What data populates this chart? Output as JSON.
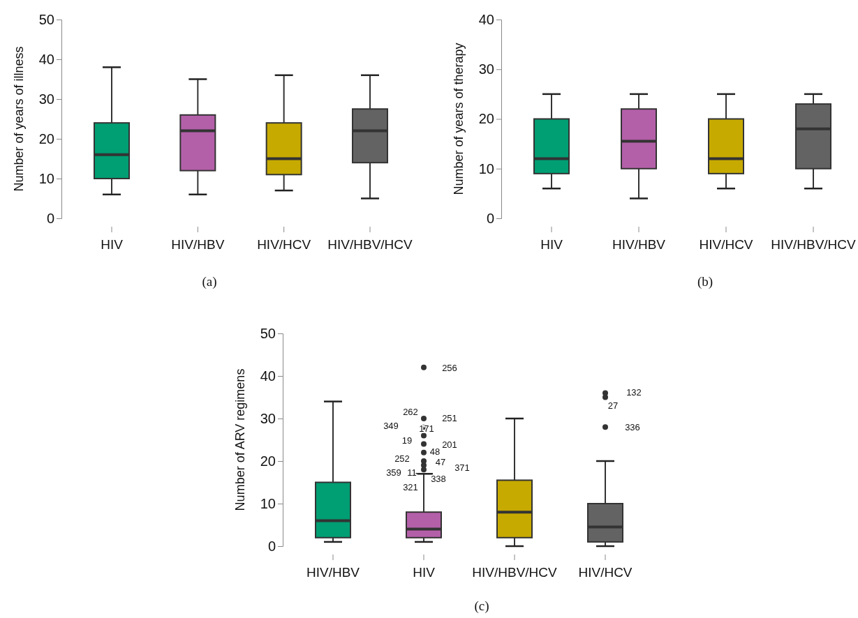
{
  "chart_data": [
    {
      "type": "box",
      "ylabel": "Number of years of illness",
      "categories": [
        "HIV",
        "HIV/HBV",
        "HIV/HCV",
        "HIV/HBV/HCV"
      ],
      "colors": [
        "#009e73",
        "#b460a9",
        "#c7aa00",
        "#636363"
      ],
      "ylim": [
        0,
        50
      ],
      "yticks": [
        0,
        10,
        20,
        30,
        40,
        50
      ],
      "boxes": [
        {
          "low": 6,
          "q1": 10,
          "median": 16,
          "q3": 24,
          "high": 38
        },
        {
          "low": 6,
          "q1": 12,
          "median": 22,
          "q3": 26,
          "high": 35
        },
        {
          "low": 7,
          "q1": 11,
          "median": 15,
          "q3": 24,
          "high": 36
        },
        {
          "low": 5,
          "q1": 14,
          "median": 22,
          "q3": 27.5,
          "high": 36
        }
      ],
      "annotations": [
        "(a)"
      ]
    },
    {
      "type": "box",
      "ylabel": "Number of years of therapy",
      "categories": [
        "HIV",
        "HIV/HBV",
        "HIV/HCV",
        "HIV/HBV/HCV"
      ],
      "colors": [
        "#009e73",
        "#b460a9",
        "#c7aa00",
        "#636363"
      ],
      "ylim": [
        0,
        40
      ],
      "yticks": [
        0,
        10,
        20,
        30,
        40
      ],
      "boxes": [
        {
          "low": 6,
          "q1": 9,
          "median": 12,
          "q3": 20,
          "high": 25
        },
        {
          "low": 4,
          "q1": 10,
          "median": 15.5,
          "q3": 22,
          "high": 25
        },
        {
          "low": 6,
          "q1": 9,
          "median": 12,
          "q3": 20,
          "high": 25
        },
        {
          "low": 6,
          "q1": 10,
          "median": 18,
          "q3": 23,
          "high": 25
        }
      ],
      "annotations": [
        "(b)"
      ]
    },
    {
      "type": "box",
      "ylabel": "Number of ARV regimens",
      "categories": [
        "HIV/HBV",
        "HIV",
        "HIV/HBV/HCV",
        "HIV/HCV"
      ],
      "colors": [
        "#009e73",
        "#b460a9",
        "#c7aa00",
        "#636363"
      ],
      "ylim": [
        0,
        50
      ],
      "yticks": [
        0,
        10,
        20,
        30,
        40,
        50
      ],
      "boxes": [
        {
          "low": 1,
          "q1": 2,
          "median": 6,
          "q3": 15,
          "high": 34
        },
        {
          "low": 1,
          "q1": 2,
          "median": 4,
          "q3": 8,
          "high": 17,
          "outliers": [
            42,
            30,
            28,
            26,
            24,
            22,
            20,
            19,
            18
          ]
        },
        {
          "low": 0,
          "q1": 2,
          "median": 8,
          "q3": 15.5,
          "high": 30
        },
        {
          "low": 0,
          "q1": 1,
          "median": 4.5,
          "q3": 10,
          "high": 20,
          "outliers": [
            36,
            35,
            28
          ]
        }
      ],
      "annotations": [
        "(c)",
        "256",
        "262",
        "251",
        "349",
        "171",
        "19",
        "201",
        "48",
        "252",
        "47",
        "371",
        "359",
        "11",
        "338",
        "321",
        "132",
        "27",
        "336"
      ]
    }
  ]
}
